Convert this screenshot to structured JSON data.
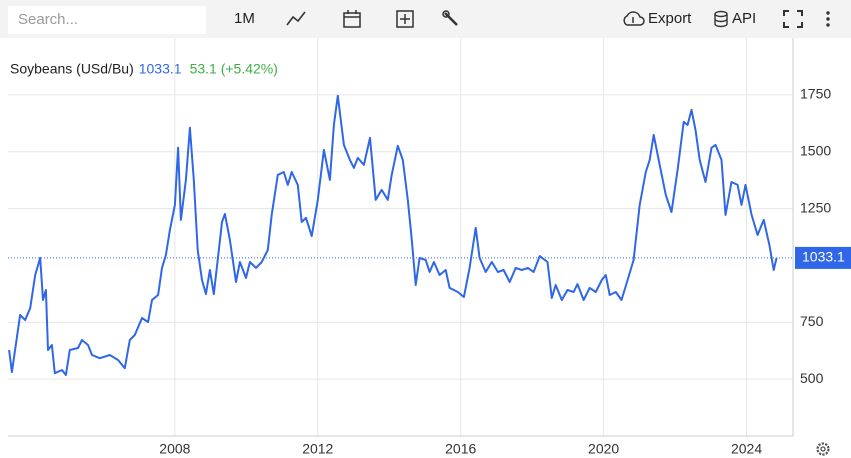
{
  "toolbar": {
    "search_placeholder": "Search...",
    "range": "1M",
    "export": "Export",
    "api": "API"
  },
  "chart_data": {
    "type": "line",
    "title": "Soybeans (USd/Bu)",
    "last_value": 1033.1,
    "change_text": "53.1 (+5.42%)",
    "color": "#2f67e8",
    "grid": true,
    "xlim": [
      2003.33,
      2025.3
    ],
    "xticks": [
      2008,
      2012,
      2016,
      2020,
      2024
    ],
    "ylim": [
      250,
      2000
    ],
    "yticks": [
      500,
      750,
      1250,
      1500,
      1750
    ],
    "series": [
      {
        "name": "Soybeans (USd/Bu)",
        "color": "#2f67e8",
        "x": [
          2003.36,
          2003.44,
          2003.67,
          2003.81,
          2003.95,
          2004.09,
          2004.23,
          2004.31,
          2004.39,
          2004.45,
          2004.56,
          2004.64,
          2004.84,
          2004.95,
          2005.06,
          2005.29,
          2005.4,
          2005.57,
          2005.68,
          2005.9,
          2006.18,
          2006.41,
          2006.6,
          2006.74,
          2006.88,
          2007.08,
          2007.25,
          2007.36,
          2007.53,
          2007.64,
          2007.75,
          2007.86,
          2008.0,
          2008.09,
          2008.17,
          2008.31,
          2008.42,
          2008.53,
          2008.64,
          2008.76,
          2008.87,
          2008.98,
          2009.09,
          2009.2,
          2009.32,
          2009.4,
          2009.54,
          2009.71,
          2009.82,
          2009.99,
          2010.1,
          2010.27,
          2010.43,
          2010.6,
          2010.71,
          2010.88,
          2011.05,
          2011.16,
          2011.27,
          2011.44,
          2011.55,
          2011.67,
          2011.83,
          2012.0,
          2012.17,
          2012.34,
          2012.45,
          2012.56,
          2012.73,
          2012.9,
          2013.01,
          2013.12,
          2013.29,
          2013.46,
          2013.62,
          2013.79,
          2013.96,
          2014.07,
          2014.24,
          2014.38,
          2014.52,
          2014.63,
          2014.74,
          2014.85,
          2015.02,
          2015.13,
          2015.25,
          2015.41,
          2015.58,
          2015.69,
          2015.92,
          2016.09,
          2016.25,
          2016.42,
          2016.53,
          2016.7,
          2016.87,
          2017.04,
          2017.2,
          2017.37,
          2017.54,
          2017.71,
          2017.88,
          2018.04,
          2018.21,
          2018.43,
          2018.55,
          2018.66,
          2018.83,
          2018.99,
          2019.16,
          2019.27,
          2019.44,
          2019.61,
          2019.78,
          2019.95,
          2020.06,
          2020.17,
          2020.34,
          2020.5,
          2020.67,
          2020.84,
          2021.01,
          2021.18,
          2021.29,
          2021.4,
          2021.57,
          2021.74,
          2021.9,
          2022.07,
          2022.24,
          2022.35,
          2022.46,
          2022.57,
          2022.69,
          2022.85,
          2023.02,
          2023.13,
          2023.3,
          2023.41,
          2023.58,
          2023.75,
          2023.86,
          2023.97,
          2024.14,
          2024.31,
          2024.48,
          2024.64,
          2024.76,
          2024.84
        ],
        "values": [
          628,
          531,
          782,
          760,
          812,
          958,
          1033,
          848,
          892,
          628,
          650,
          526,
          540,
          518,
          628,
          637,
          672,
          650,
          606,
          592,
          606,
          584,
          548,
          672,
          694,
          769,
          751,
          848,
          870,
          989,
          1046,
          1156,
          1266,
          1517,
          1200,
          1376,
          1605,
          1376,
          1068,
          936,
          874,
          980,
          874,
          1024,
          1191,
          1226,
          1112,
          927,
          1015,
          945,
          1015,
          989,
          1015,
          1068,
          1222,
          1398,
          1411,
          1354,
          1411,
          1354,
          1191,
          1209,
          1129,
          1288,
          1508,
          1376,
          1618,
          1746,
          1530,
          1464,
          1429,
          1473,
          1442,
          1561,
          1288,
          1332,
          1288,
          1398,
          1526,
          1464,
          1288,
          1112,
          914,
          1033,
          1024,
          971,
          1015,
          958,
          980,
          901,
          883,
          861,
          989,
          1165,
          1033,
          971,
          1015,
          971,
          980,
          927,
          989,
          980,
          989,
          971,
          1041,
          1015,
          857,
          914,
          848,
          892,
          883,
          918,
          848,
          901,
          883,
          936,
          958,
          870,
          883,
          848,
          936,
          1024,
          1266,
          1411,
          1464,
          1574,
          1442,
          1310,
          1235,
          1420,
          1631,
          1618,
          1684,
          1596,
          1464,
          1367,
          1517,
          1530,
          1464,
          1222,
          1367,
          1354,
          1266,
          1354,
          1222,
          1134,
          1200,
          1090,
          980,
          1033.1
        ]
      }
    ]
  }
}
